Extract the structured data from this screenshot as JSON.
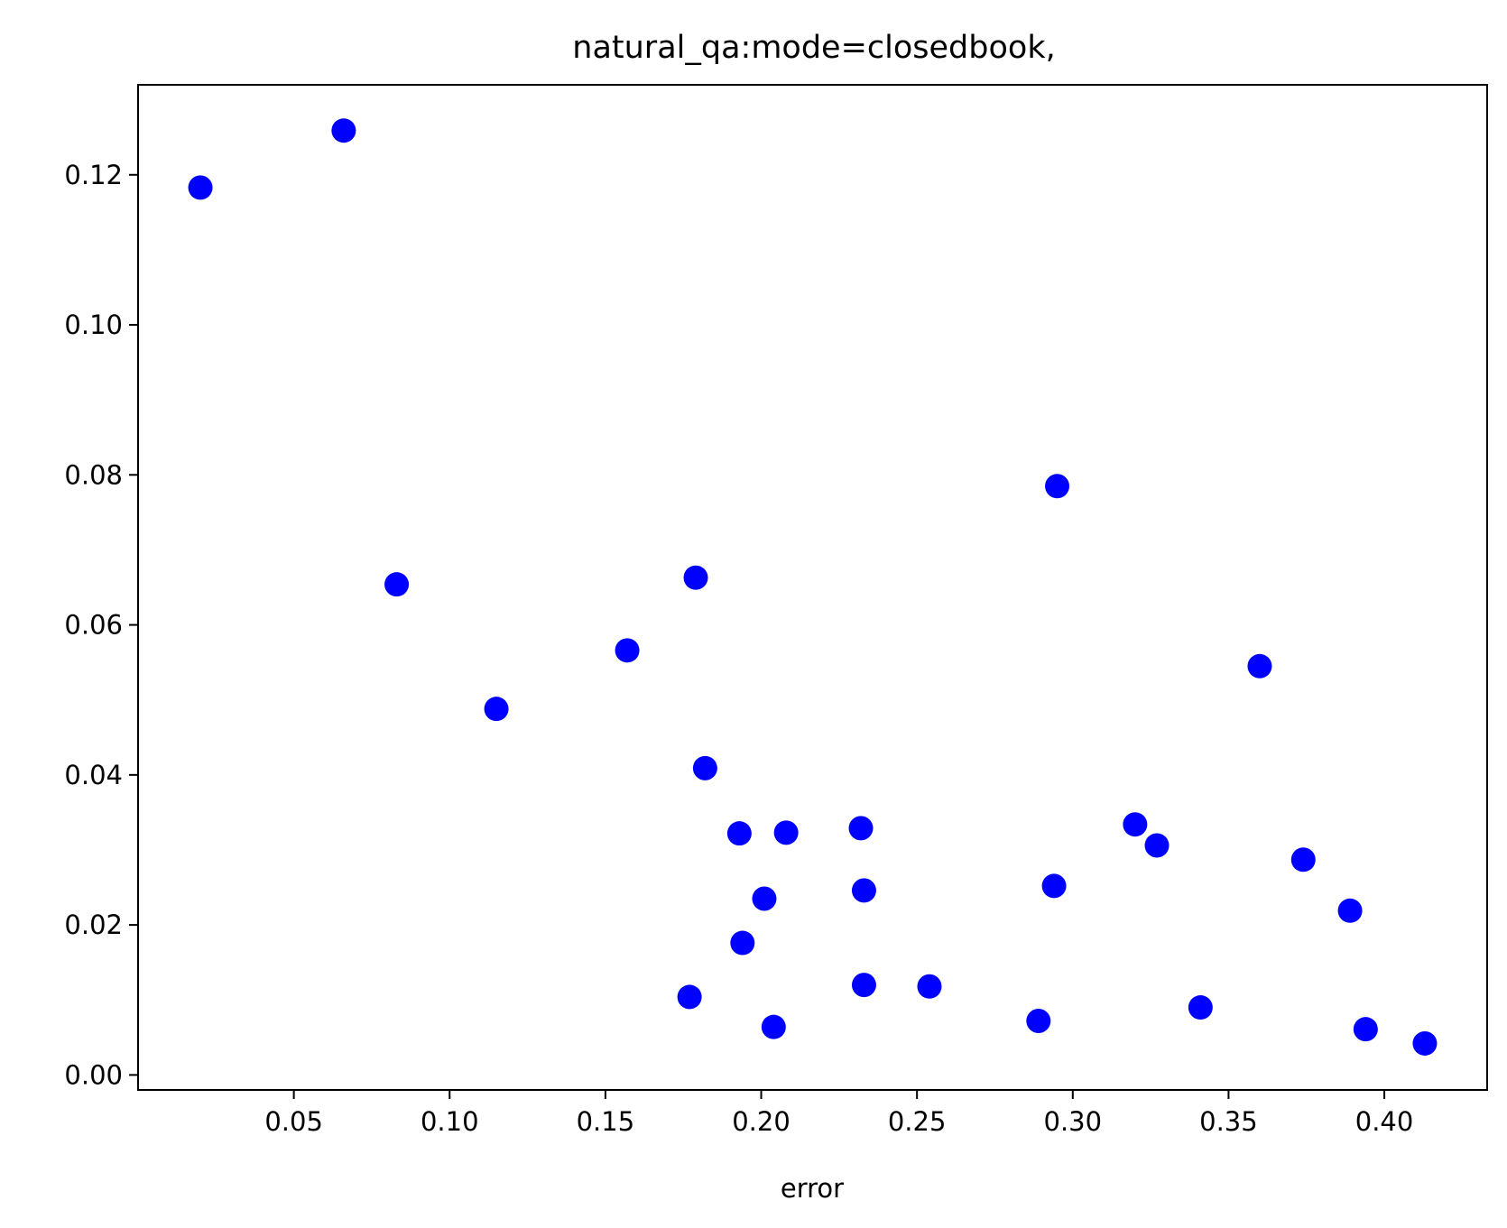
{
  "chart_data": {
    "type": "scatter",
    "title": "natural_qa:mode=closedbook,",
    "xlabel": "error",
    "ylabel": "",
    "xlim": [
      0.0,
      0.433
    ],
    "ylim": [
      -0.002,
      0.132
    ],
    "xticks": [
      {
        "value": 0.05,
        "label": "0.05"
      },
      {
        "value": 0.1,
        "label": "0.10"
      },
      {
        "value": 0.15,
        "label": "0.15"
      },
      {
        "value": 0.2,
        "label": "0.20"
      },
      {
        "value": 0.25,
        "label": "0.25"
      },
      {
        "value": 0.3,
        "label": "0.30"
      },
      {
        "value": 0.35,
        "label": "0.35"
      },
      {
        "value": 0.4,
        "label": "0.40"
      }
    ],
    "yticks": [
      {
        "value": 0.0,
        "label": "0.00"
      },
      {
        "value": 0.02,
        "label": "0.02"
      },
      {
        "value": 0.04,
        "label": "0.04"
      },
      {
        "value": 0.06,
        "label": "0.06"
      },
      {
        "value": 0.08,
        "label": "0.08"
      },
      {
        "value": 0.1,
        "label": "0.10"
      },
      {
        "value": 0.12,
        "label": "0.12"
      }
    ],
    "grid": false,
    "marker_color": "#0000ff",
    "points": [
      {
        "x": 0.02,
        "y": 0.1183
      },
      {
        "x": 0.066,
        "y": 0.1259
      },
      {
        "x": 0.083,
        "y": 0.0654
      },
      {
        "x": 0.115,
        "y": 0.0488
      },
      {
        "x": 0.157,
        "y": 0.0566
      },
      {
        "x": 0.177,
        "y": 0.0104
      },
      {
        "x": 0.179,
        "y": 0.0663
      },
      {
        "x": 0.182,
        "y": 0.0409
      },
      {
        "x": 0.193,
        "y": 0.0322
      },
      {
        "x": 0.194,
        "y": 0.0176
      },
      {
        "x": 0.201,
        "y": 0.0235
      },
      {
        "x": 0.204,
        "y": 0.0064
      },
      {
        "x": 0.208,
        "y": 0.0323
      },
      {
        "x": 0.232,
        "y": 0.0329
      },
      {
        "x": 0.233,
        "y": 0.0246
      },
      {
        "x": 0.233,
        "y": 0.012
      },
      {
        "x": 0.254,
        "y": 0.0118
      },
      {
        "x": 0.289,
        "y": 0.0072
      },
      {
        "x": 0.294,
        "y": 0.0252
      },
      {
        "x": 0.295,
        "y": 0.0785
      },
      {
        "x": 0.32,
        "y": 0.0334
      },
      {
        "x": 0.327,
        "y": 0.0306
      },
      {
        "x": 0.341,
        "y": 0.009
      },
      {
        "x": 0.36,
        "y": 0.0545
      },
      {
        "x": 0.374,
        "y": 0.0287
      },
      {
        "x": 0.389,
        "y": 0.0219
      },
      {
        "x": 0.394,
        "y": 0.0061
      },
      {
        "x": 0.413,
        "y": 0.0042
      }
    ]
  }
}
